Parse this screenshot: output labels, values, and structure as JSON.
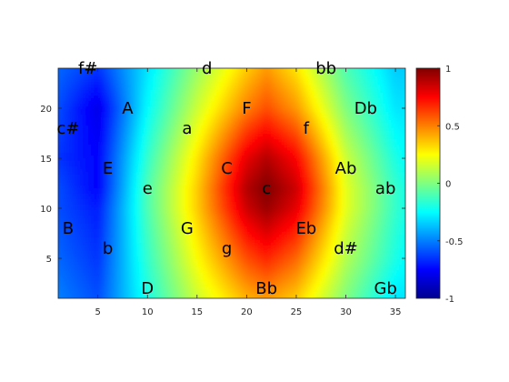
{
  "chart_data": {
    "type": "heatmap",
    "title": "",
    "xlabel": "",
    "ylabel": "",
    "xlim": [
      1,
      36
    ],
    "ylim": [
      1,
      24
    ],
    "x_ticks": [
      5,
      10,
      15,
      20,
      25,
      30,
      35
    ],
    "y_ticks": [
      5,
      10,
      15,
      20
    ],
    "colormap": "jet",
    "colorbar": {
      "limits": [
        -1,
        1
      ],
      "ticks": [
        1,
        0.5,
        0,
        -0.5,
        -1
      ],
      "tick_labels": [
        "1",
        "0.5",
        "0",
        "-0.5",
        "-1"
      ]
    },
    "peak": {
      "x": 22,
      "y": 12,
      "value": 1
    },
    "field_samples": {
      "x": [
        1,
        5,
        10,
        15,
        20,
        22,
        25,
        30,
        35,
        36
      ],
      "y": [
        1,
        5,
        10,
        12,
        15,
        20,
        24
      ],
      "values": [
        [
          -0.5,
          -0.6,
          -0.2,
          0.15,
          0.4,
          0.45,
          0.35,
          0.0,
          -0.3,
          -0.3
        ],
        [
          -0.55,
          -0.65,
          -0.15,
          0.25,
          0.6,
          0.68,
          0.55,
          0.1,
          -0.2,
          -0.25
        ],
        [
          -0.6,
          -0.7,
          -0.1,
          0.35,
          0.85,
          0.95,
          0.8,
          0.2,
          -0.15,
          -0.2
        ],
        [
          -0.6,
          -0.75,
          -0.1,
          0.35,
          0.9,
          1.0,
          0.85,
          0.2,
          -0.15,
          -0.2
        ],
        [
          -0.65,
          -0.75,
          -0.15,
          0.3,
          0.8,
          0.9,
          0.75,
          0.15,
          -0.2,
          -0.25
        ],
        [
          -0.6,
          -0.8,
          -0.25,
          0.15,
          0.5,
          0.6,
          0.45,
          0.0,
          -0.3,
          -0.3
        ],
        [
          -0.55,
          -0.65,
          -0.3,
          0.05,
          0.35,
          0.45,
          0.3,
          -0.1,
          -0.35,
          -0.35
        ]
      ]
    },
    "annotations": [
      {
        "text": "f#",
        "x": 4,
        "y": 24
      },
      {
        "text": "d",
        "x": 16,
        "y": 24
      },
      {
        "text": "bb",
        "x": 28,
        "y": 24
      },
      {
        "text": "A",
        "x": 8,
        "y": 20
      },
      {
        "text": "F",
        "x": 20,
        "y": 20
      },
      {
        "text": "Db",
        "x": 32,
        "y": 20
      },
      {
        "text": "c#",
        "x": 2,
        "y": 18
      },
      {
        "text": "a",
        "x": 14,
        "y": 18
      },
      {
        "text": "f",
        "x": 26,
        "y": 18
      },
      {
        "text": "E",
        "x": 6,
        "y": 14
      },
      {
        "text": "C",
        "x": 18,
        "y": 14
      },
      {
        "text": "Ab",
        "x": 30,
        "y": 14
      },
      {
        "text": "e",
        "x": 10,
        "y": 12
      },
      {
        "text": "c",
        "x": 22,
        "y": 12
      },
      {
        "text": "ab",
        "x": 34,
        "y": 12
      },
      {
        "text": "B",
        "x": 2,
        "y": 8
      },
      {
        "text": "G",
        "x": 14,
        "y": 8
      },
      {
        "text": "Eb",
        "x": 26,
        "y": 8
      },
      {
        "text": "b",
        "x": 6,
        "y": 6
      },
      {
        "text": "g",
        "x": 18,
        "y": 6
      },
      {
        "text": "d#",
        "x": 30,
        "y": 6
      },
      {
        "text": "D",
        "x": 10,
        "y": 2
      },
      {
        "text": "Bb",
        "x": 22,
        "y": 2
      },
      {
        "text": "Gb",
        "x": 34,
        "y": 2
      }
    ]
  }
}
